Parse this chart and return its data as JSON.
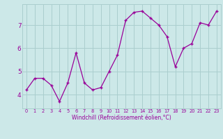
{
  "x": [
    0,
    1,
    2,
    3,
    4,
    5,
    6,
    7,
    8,
    9,
    10,
    11,
    12,
    13,
    14,
    15,
    16,
    17,
    18,
    19,
    20,
    21,
    22,
    23
  ],
  "y": [
    4.2,
    4.7,
    4.7,
    4.4,
    3.7,
    4.5,
    5.8,
    4.5,
    4.2,
    4.3,
    5.0,
    5.7,
    7.2,
    7.55,
    7.6,
    7.3,
    7.0,
    6.5,
    5.2,
    6.0,
    6.2,
    7.1,
    7.0,
    7.6
  ],
  "line_color": "#990099",
  "marker": "+",
  "bg_color": "#cce8e8",
  "grid_color": "#aacece",
  "xlabel": "Windchill (Refroidissement éolien,°C)",
  "yticks": [
    4,
    5,
    6,
    7
  ],
  "xticks": [
    0,
    1,
    2,
    3,
    4,
    5,
    6,
    7,
    8,
    9,
    10,
    11,
    12,
    13,
    14,
    15,
    16,
    17,
    18,
    19,
    20,
    21,
    22,
    23
  ],
  "xlim": [
    -0.5,
    23.5
  ],
  "ylim": [
    3.4,
    7.9
  ]
}
